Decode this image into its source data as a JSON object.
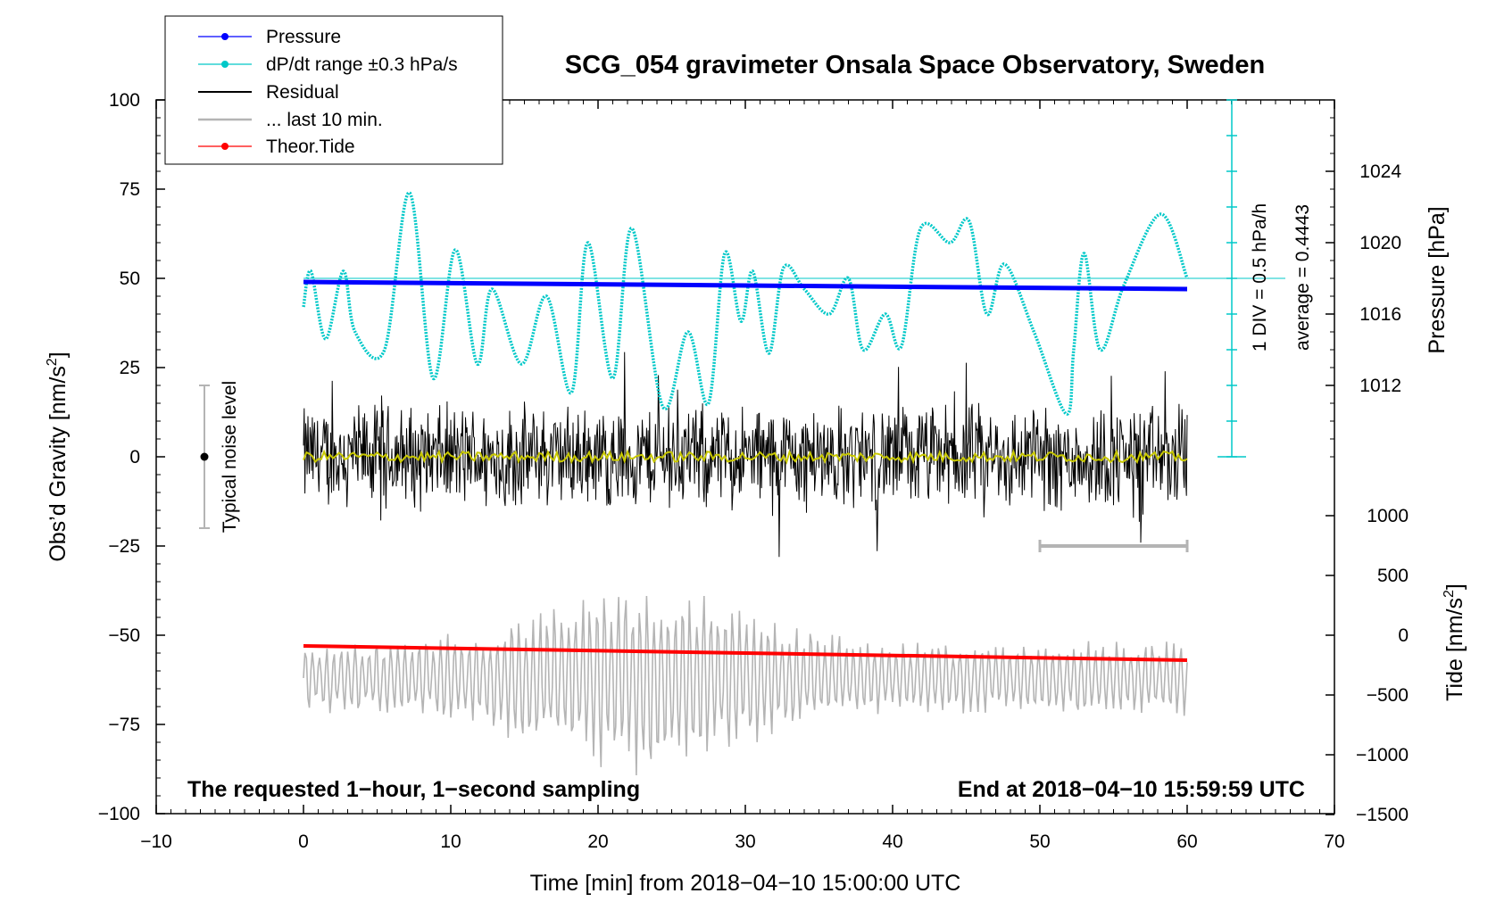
{
  "chart_data": {
    "type": "line",
    "title": "SCG_054 gravimeter Onsala Space Observatory, Sweden",
    "xlabel": "Time [min] from 2018−04−10 15:00:00 UTC",
    "ylabel": "Obs’d Gravity [nm/s²]",
    "ylabel_main": "Obs’d Gravity [nm/s",
    "ylabel_sup": "2",
    "ylabel_end": "]",
    "right_pressure_label": "Pressure [hPa]",
    "right_tide_label_main": "Tide [nm/s",
    "right_tide_label_sup": "2",
    "right_tide_label_end": "]",
    "xlim": [
      -10,
      70
    ],
    "ylim": [
      -100,
      100
    ],
    "x_ticks": [
      "−10",
      "0",
      "10",
      "20",
      "30",
      "40",
      "50",
      "60",
      "70"
    ],
    "x_tick_values": [
      -10,
      0,
      10,
      20,
      30,
      40,
      50,
      60,
      70
    ],
    "y_ticks": [
      "100",
      "75",
      "50",
      "25",
      "0",
      "−25",
      "−50",
      "−75",
      "−100"
    ],
    "y_tick_values": [
      100,
      75,
      50,
      25,
      0,
      -25,
      -50,
      -75,
      -100
    ],
    "pressure_ticks": [
      "1024",
      "1020",
      "1016",
      "1012"
    ],
    "pressure_tick_values": [
      1024,
      1020,
      1016,
      1012
    ],
    "tide_ticks": [
      "1000",
      "500",
      "0",
      "−500",
      "−1000",
      "−1500"
    ],
    "tide_tick_values": [
      1000,
      500,
      0,
      -500,
      -1000,
      -1500
    ],
    "grid": false,
    "legend_position": "top-left",
    "legend": [
      {
        "name": "Pressure",
        "color": "#0000ff",
        "marker": true
      },
      {
        "name": "dP/dt range ±0.3 hPa/s",
        "color": "#00c8c8",
        "marker": true
      },
      {
        "name": "Residual",
        "color": "#000000",
        "marker": false
      },
      {
        "name": "... last 10 min.",
        "color": "#b4b4b4",
        "marker": false
      },
      {
        "name": "Theor.Tide",
        "color": "#ff0000",
        "marker": true
      }
    ],
    "annotations": {
      "noise_label": "Typical noise level",
      "noise_range": [
        -20,
        20
      ],
      "div_label": "1 DIV = 0.5 hPa/h",
      "average_label": "average = 0.4443",
      "left_note": "The requested 1−hour, 1−second sampling",
      "right_note": "End at 2018−04−10 15:59:59 UTC",
      "last10_bar_x": [
        50,
        60
      ],
      "last10_bar_y": -25
    },
    "series": [
      {
        "name": "Pressure",
        "color": "#0000ff",
        "x": [
          0,
          60
        ],
        "y": [
          49,
          47
        ]
      },
      {
        "name": "dP/dt range ±0.3 hPa/s",
        "color": "#00c8c8",
        "x": [
          0,
          0.5,
          1.5,
          2.7,
          3.5,
          5.5,
          7.2,
          8.8,
          10.3,
          11.8,
          12.8,
          14.8,
          16.5,
          18.2,
          19.3,
          21,
          22.3,
          24.4,
          26.1,
          27.5,
          28.6,
          29.7,
          30.5,
          31.6,
          32.6,
          34,
          35.7,
          37,
          38,
          39.5,
          40.6,
          41.9,
          43.9,
          45.2,
          46.4,
          47.6,
          49.6,
          51.8,
          52.3,
          53,
          54.1,
          55.7,
          58.2,
          60
        ],
        "y": [
          42,
          52,
          33,
          52,
          35,
          30,
          74,
          22,
          58,
          26,
          47,
          26,
          45,
          18,
          60,
          22,
          64,
          14,
          35,
          15,
          57,
          38,
          52,
          29,
          53,
          47,
          40,
          50,
          30,
          40,
          31,
          64,
          60,
          66,
          40,
          54,
          35,
          12,
          30,
          57,
          30,
          48,
          68,
          50
        ]
      },
      {
        "name": "Residual",
        "color": "#000000",
        "x_range": [
          0,
          60
        ],
        "y_range": [
          -37,
          31
        ]
      },
      {
        "name": "... last 10 min.",
        "color": "#b4b4b4",
        "x_range": [
          0,
          60
        ],
        "y_range": [
          -100,
          -39
        ]
      },
      {
        "name": "Theor.Tide",
        "color": "#ff0000",
        "x": [
          0,
          60
        ],
        "y": [
          -53,
          -57
        ]
      },
      {
        "name": "Residual mean",
        "color": "#c8c800",
        "x": [
          0,
          60
        ],
        "y": [
          0,
          0
        ]
      }
    ]
  }
}
